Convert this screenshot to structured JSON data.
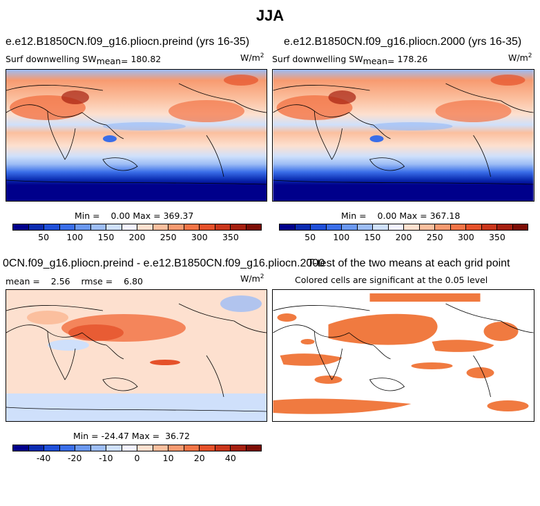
{
  "page_title": "JJA",
  "panels": {
    "top_left": {
      "title": "e.e12.B1850CN.f09_g16.pliocn.preind (yrs 16-35)",
      "variable": "Surf downwelling SW",
      "mean_label": "mean=",
      "mean_value": "180.82",
      "units_base": "W/m",
      "units_exp": "2",
      "minmax": "Min =    0.00 Max = 369.37"
    },
    "top_right": {
      "title": "e.e12.B1850CN.f09_g16.pliocn.2000 (yrs 16-35)",
      "variable": "Surf downwelling SW",
      "mean_label": "mean=",
      "mean_value": "178.26",
      "units_base": "W/m",
      "units_exp": "2",
      "minmax": "Min =    0.00 Max = 367.18"
    },
    "bottom_left": {
      "title": "0CN.f09_g16.pliocn.preind - e.e12.B1850CN.f09_g16.pliocn.2000",
      "stats": "mean =    2.56    rmse =    6.80",
      "units_base": "W/m",
      "units_exp": "2",
      "minmax": "Min = -24.47 Max =  36.72"
    },
    "bottom_right": {
      "title": "T-test of the two means at each grid point",
      "subtitle": "Colored cells are significant at the 0.05 level"
    }
  },
  "colorbars": {
    "absolute": {
      "labels": [
        "50",
        "100",
        "150",
        "200",
        "250",
        "300",
        "350"
      ],
      "colors": [
        "#00008b",
        "#0a2bb0",
        "#1f4fd8",
        "#3a6ee8",
        "#6a98f0",
        "#9dbdf5",
        "#cfe0fb",
        "#f2f2ff",
        "#fde0cf",
        "#fbbf9e",
        "#f79a70",
        "#f27446",
        "#e5512a",
        "#c9361b",
        "#a5200f",
        "#7d0d05"
      ]
    },
    "difference": {
      "labels": [
        "-40",
        "-20",
        "-10",
        "0",
        "10",
        "20",
        "40"
      ],
      "colors": [
        "#00008b",
        "#0a2bb0",
        "#1f4fd8",
        "#3a6ee8",
        "#6a98f0",
        "#9dbdf5",
        "#cfe0fb",
        "#f2f2ff",
        "#fde0cf",
        "#fbbf9e",
        "#f79a70",
        "#f27446",
        "#e5512a",
        "#c9361b",
        "#a5200f",
        "#7d0d05"
      ]
    }
  },
  "colors": {
    "significant": "#f07a40",
    "deep_blue": "#00008b"
  }
}
